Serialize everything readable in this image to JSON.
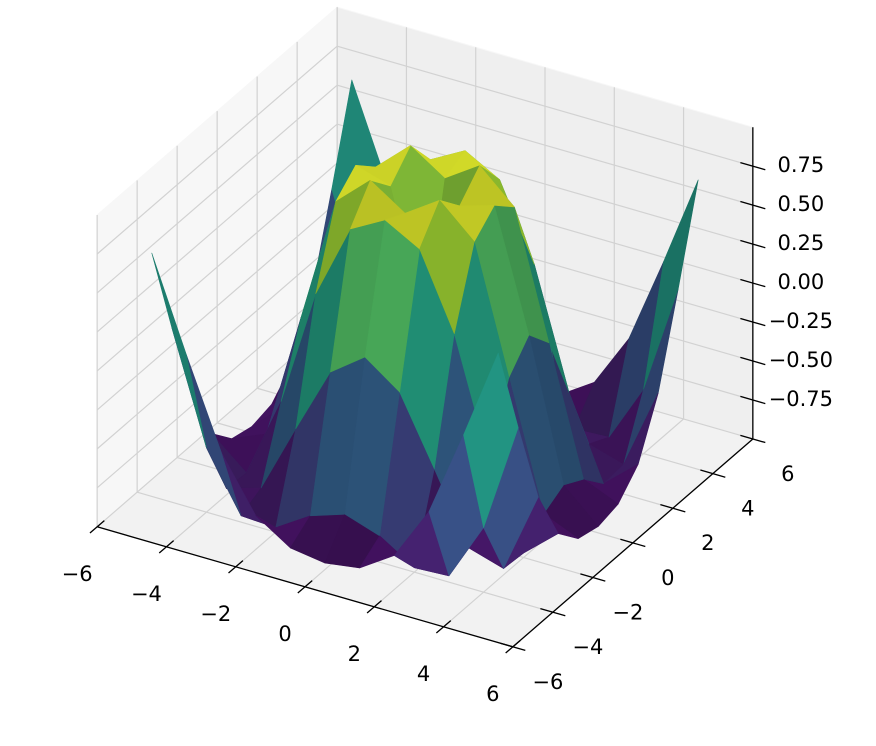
{
  "chart_data": {
    "type": "surface3d",
    "x": [
      -5,
      -4,
      -3,
      -2,
      -1,
      0,
      1,
      2,
      3,
      4,
      5
    ],
    "y": [
      -5,
      -4,
      -3,
      -2,
      -1,
      0,
      1,
      2,
      3,
      4,
      5
    ],
    "z": [
      [
        0.709,
        0.12,
        -0.437,
        -0.782,
        -0.926,
        -0.959,
        -0.926,
        -0.782,
        -0.437,
        0.12,
        0.709
      ],
      [
        0.12,
        -0.586,
        -0.959,
        -0.971,
        -0.831,
        -0.757,
        -0.831,
        -0.971,
        -0.959,
        -0.586,
        0.12
      ],
      [
        -0.437,
        -0.959,
        -0.892,
        -0.448,
        -0.02,
        0.141,
        -0.02,
        -0.448,
        -0.892,
        -0.959,
        -0.437
      ],
      [
        -0.782,
        -0.971,
        -0.448,
        0.308,
        0.787,
        0.909,
        0.787,
        0.308,
        -0.448,
        -0.971,
        -0.782
      ],
      [
        -0.926,
        -0.831,
        -0.02,
        0.787,
        0.988,
        0.841,
        0.988,
        0.787,
        -0.02,
        -0.831,
        -0.926
      ],
      [
        -0.959,
        -0.757,
        0.141,
        0.909,
        0.841,
        0,
        0.841,
        0.909,
        0.141,
        -0.757,
        -0.959
      ],
      [
        -0.926,
        -0.831,
        -0.02,
        0.787,
        0.988,
        0.841,
        0.988,
        0.787,
        -0.02,
        -0.831,
        -0.926
      ],
      [
        -0.782,
        -0.971,
        -0.448,
        0.308,
        0.787,
        0.909,
        0.787,
        0.308,
        -0.448,
        -0.971,
        -0.782
      ],
      [
        -0.437,
        -0.959,
        -0.892,
        -0.448,
        -0.02,
        0.141,
        -0.02,
        -0.448,
        -0.892,
        -0.959,
        -0.437
      ],
      [
        0.12,
        -0.586,
        -0.959,
        -0.971,
        -0.831,
        -0.757,
        -0.831,
        -0.971,
        -0.959,
        -0.586,
        0.12
      ],
      [
        0.709,
        0.12,
        -0.437,
        -0.782,
        -0.926,
        -0.959,
        -0.926,
        -0.782,
        -0.437,
        0.12,
        0.709
      ]
    ],
    "colormap": "viridis",
    "xlim": [
      -6,
      6
    ],
    "ylim": [
      -6,
      6
    ],
    "zlim": [
      -1,
      1
    ],
    "xticks": [
      {
        "value": -6,
        "label": "−6"
      },
      {
        "value": -4,
        "label": "−4"
      },
      {
        "value": -2,
        "label": "−2"
      },
      0,
      2,
      4,
      6
    ],
    "yticks": [
      {
        "value": -6,
        "label": "−6"
      },
      {
        "value": -4,
        "label": "−4"
      },
      {
        "value": -2,
        "label": "−2"
      },
      0,
      2,
      4,
      6
    ],
    "zticks": [
      {
        "value": -0.75,
        "label": "−0.75"
      },
      {
        "value": -0.5,
        "label": "−0.50"
      },
      {
        "value": -0.25,
        "label": "−0.25"
      },
      {
        "value": 0,
        "label": "0.00"
      },
      0.25,
      {
        "value": 0.5,
        "label": "0.50"
      },
      0.75
    ],
    "grid": true,
    "elev": 30,
    "azim": -60
  }
}
